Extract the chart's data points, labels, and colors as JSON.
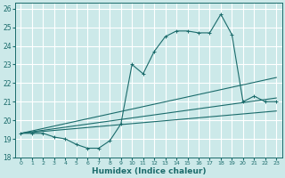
{
  "xlabel": "Humidex (Indice chaleur)",
  "xlim": [
    -0.5,
    23.5
  ],
  "ylim": [
    18,
    26.3
  ],
  "yticks": [
    18,
    19,
    20,
    21,
    22,
    23,
    24,
    25,
    26
  ],
  "xticks": [
    0,
    1,
    2,
    3,
    4,
    5,
    6,
    7,
    8,
    9,
    10,
    11,
    12,
    13,
    14,
    15,
    16,
    17,
    18,
    19,
    20,
    21,
    22,
    23
  ],
  "bg_color": "#cce9e9",
  "line_color": "#1a6b6b",
  "grid_color": "#ffffff",
  "lines": [
    {
      "x": [
        0,
        1,
        2,
        3,
        4,
        5,
        6,
        7,
        8,
        9,
        10,
        11,
        12,
        13,
        14,
        15,
        16,
        17,
        18,
        19,
        20,
        21,
        22,
        23
      ],
      "y": [
        19.3,
        19.3,
        19.3,
        19.1,
        19.0,
        18.7,
        18.5,
        18.5,
        18.9,
        19.8,
        23.0,
        22.5,
        23.7,
        24.5,
        24.8,
        24.8,
        24.7,
        24.7,
        25.7,
        24.6,
        21.0,
        21.3,
        21.0,
        21.0
      ],
      "marker": true
    },
    {
      "x": [
        0,
        23
      ],
      "y": [
        19.3,
        22.3
      ],
      "marker": false
    },
    {
      "x": [
        0,
        23
      ],
      "y": [
        19.3,
        21.2
      ],
      "marker": false
    },
    {
      "x": [
        0,
        23
      ],
      "y": [
        19.3,
        20.5
      ],
      "marker": false
    }
  ]
}
